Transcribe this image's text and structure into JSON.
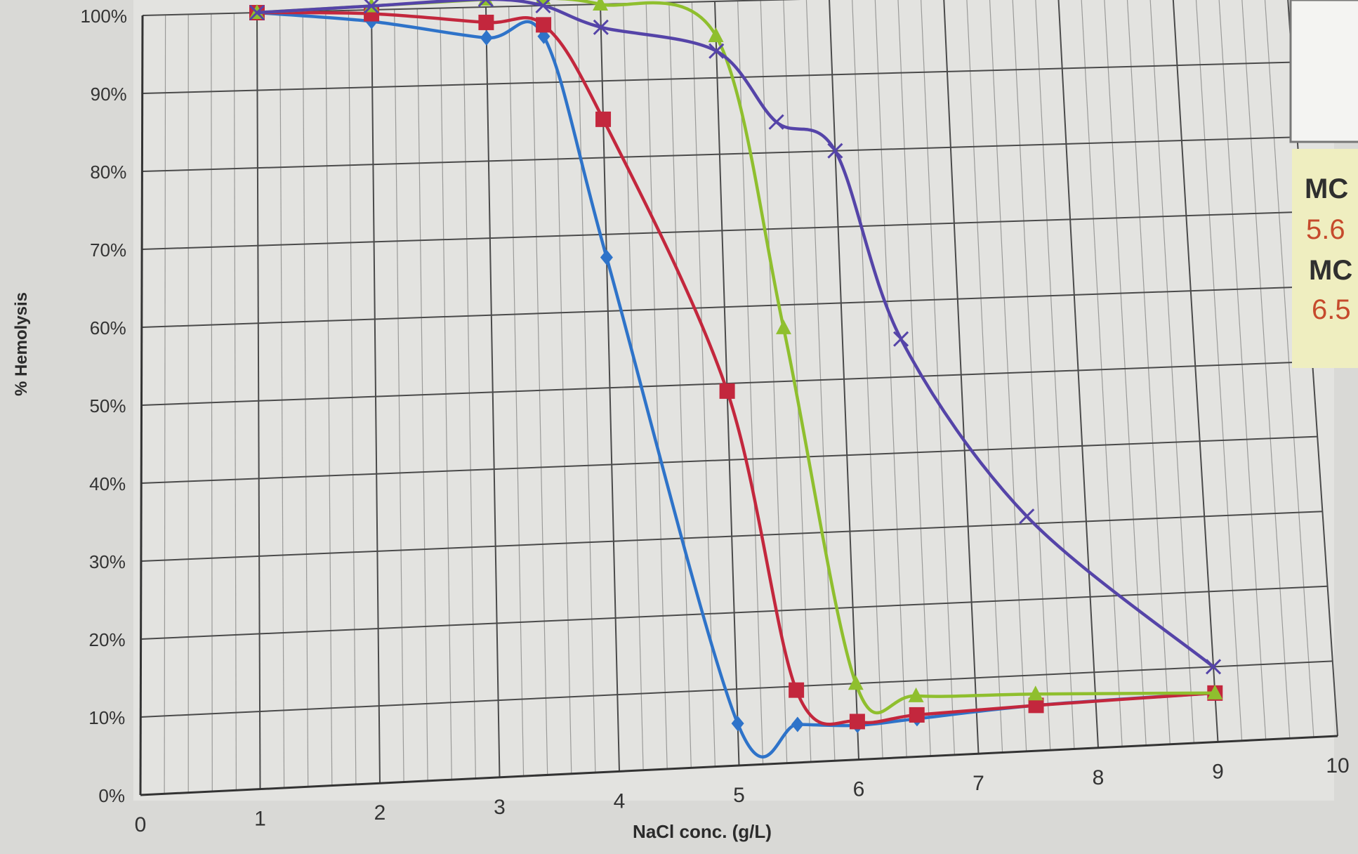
{
  "chart_data": {
    "type": "line",
    "title": "",
    "xlabel": "NaCl conc. (g/L)",
    "ylabel": "% Hemolysis",
    "xlim": [
      0,
      10
    ],
    "ylim": [
      0,
      100
    ],
    "x_ticks": [
      "0",
      "1",
      "2",
      "3",
      "4",
      "5",
      "6",
      "7",
      "8",
      "9",
      "10"
    ],
    "y_ticks": [
      "0%",
      "10%",
      "20%",
      "30%",
      "40%",
      "50%",
      "60%",
      "70%",
      "80%",
      "90%",
      "100%"
    ],
    "grid": true,
    "series": [
      {
        "color": "#2e73c9",
        "marker": "diamond",
        "points": [
          [
            1,
            100
          ],
          [
            2,
            98.5
          ],
          [
            3,
            96
          ],
          [
            3.5,
            96
          ],
          [
            4,
            67
          ],
          [
            5,
            5.5
          ],
          [
            5.5,
            5
          ],
          [
            6,
            4.5
          ],
          [
            6.5,
            5
          ],
          [
            7.5,
            6
          ],
          [
            9,
            6.5
          ]
        ]
      },
      {
        "color": "#c3273d",
        "marker": "square",
        "points": [
          [
            1,
            100
          ],
          [
            2,
            99.5
          ],
          [
            3,
            98
          ],
          [
            3.5,
            97.5
          ],
          [
            4,
            85
          ],
          [
            5,
            49
          ],
          [
            5.5,
            9.5
          ],
          [
            6,
            5
          ],
          [
            6.5,
            5.5
          ],
          [
            7.5,
            6
          ],
          [
            9,
            6.5
          ]
        ]
      },
      {
        "color": "#8fbf2e",
        "marker": "triangle",
        "points": [
          [
            1,
            100
          ],
          [
            2,
            100.5
          ],
          [
            3,
            101
          ],
          [
            3.5,
            101
          ],
          [
            4,
            100
          ],
          [
            5,
            95.5
          ],
          [
            5.5,
            57
          ],
          [
            6,
            10
          ],
          [
            6.5,
            8
          ],
          [
            7.5,
            7.5
          ],
          [
            9,
            6.5
          ]
        ]
      },
      {
        "color": "#5544a8",
        "marker": "x",
        "points": [
          [
            1,
            100
          ],
          [
            2,
            100.5
          ],
          [
            3,
            101
          ],
          [
            3.5,
            100
          ],
          [
            4,
            97
          ],
          [
            5,
            93.5
          ],
          [
            5.5,
            84
          ],
          [
            6,
            80
          ],
          [
            6.5,
            55
          ],
          [
            7.5,
            31
          ],
          [
            9,
            10
          ]
        ]
      }
    ]
  },
  "side_panel": {
    "lines": [
      {
        "text": "MC",
        "color": "#2f2f2f"
      },
      {
        "text": "5.6",
        "color": "#c64a2c"
      },
      {
        "text": "MC",
        "color": "#2f2f2f"
      },
      {
        "text": "6.5",
        "color": "#c64a2c"
      }
    ],
    "background": "#efeec0"
  }
}
